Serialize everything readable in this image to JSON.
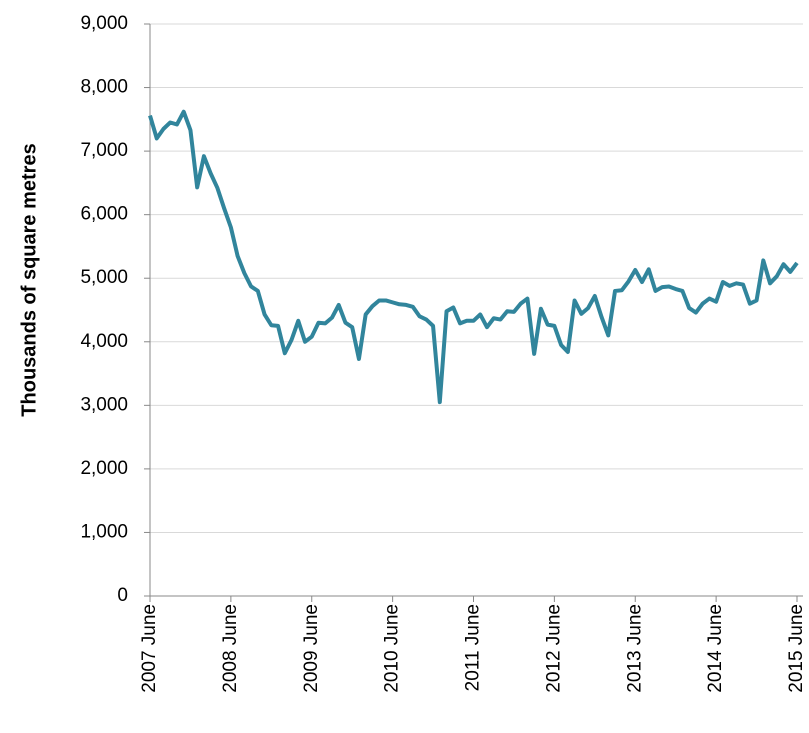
{
  "chart_data": {
    "type": "line",
    "y_label": "Thousands of square metres",
    "categories": [
      "2007 June",
      null,
      null,
      null,
      null,
      null,
      null,
      null,
      null,
      null,
      null,
      null,
      "2008 June",
      null,
      null,
      null,
      null,
      null,
      null,
      null,
      null,
      null,
      null,
      null,
      "2009 June",
      null,
      null,
      null,
      null,
      null,
      null,
      null,
      null,
      null,
      null,
      null,
      "2010 June",
      null,
      null,
      null,
      null,
      null,
      null,
      null,
      null,
      null,
      null,
      null,
      "2011 June",
      null,
      null,
      null,
      null,
      null,
      null,
      null,
      null,
      null,
      null,
      null,
      "2012 June",
      null,
      null,
      null,
      null,
      null,
      null,
      null,
      null,
      null,
      null,
      null,
      "2013 June",
      null,
      null,
      null,
      null,
      null,
      null,
      null,
      null,
      null,
      null,
      null,
      "2014 June",
      null,
      null,
      null,
      null,
      null,
      null,
      null,
      null,
      null,
      null,
      null,
      "2015 June"
    ],
    "values": [
      7560,
      7200,
      7350,
      7450,
      7420,
      7620,
      7330,
      6430,
      6920,
      6650,
      6420,
      6100,
      5800,
      5350,
      5080,
      4870,
      4800,
      4430,
      4260,
      4250,
      3820,
      4030,
      4330,
      4000,
      4080,
      4300,
      4290,
      4380,
      4580,
      4300,
      4230,
      3730,
      4430,
      4560,
      4650,
      4650,
      4620,
      4590,
      4580,
      4550,
      4400,
      4350,
      4250,
      3050,
      4480,
      4540,
      4290,
      4330,
      4330,
      4430,
      4230,
      4370,
      4350,
      4480,
      4470,
      4600,
      4680,
      3810,
      4520,
      4270,
      4250,
      3950,
      3840,
      4650,
      4440,
      4530,
      4720,
      4390,
      4100,
      4800,
      4810,
      4950,
      5130,
      4940,
      5140,
      4800,
      4860,
      4870,
      4830,
      4800,
      4530,
      4460,
      4600,
      4680,
      4630,
      4940,
      4880,
      4920,
      4900,
      4600,
      4650,
      5280,
      4920,
      5030,
      5220,
      5100,
      5240
    ],
    "color": "#31859c",
    "ylim": [
      0,
      9000
    ],
    "yticks": [
      0,
      {
        "value": 1000,
        "label": "1,000"
      },
      {
        "value": 2000,
        "label": "2,000"
      },
      {
        "value": 3000,
        "label": "3,000"
      },
      {
        "value": 4000,
        "label": "4,000"
      },
      {
        "value": 5000,
        "label": "5,000"
      },
      {
        "value": 6000,
        "label": "6,000"
      },
      {
        "value": 7000,
        "label": "7,000"
      },
      {
        "value": 8000,
        "label": "8,000"
      },
      {
        "value": 9000,
        "label": "9,000"
      }
    ],
    "grid": true
  }
}
